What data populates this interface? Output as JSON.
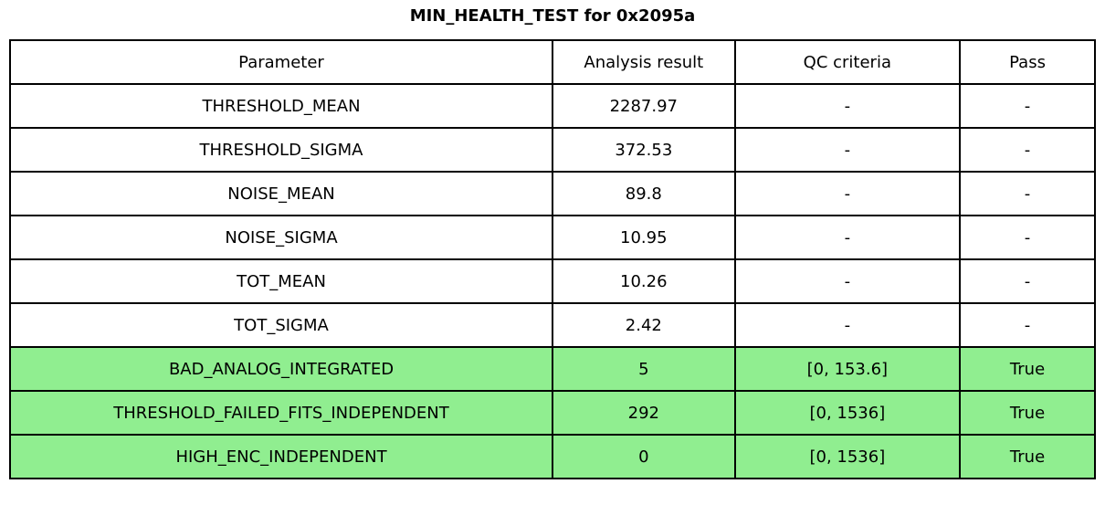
{
  "title": "MIN_HEALTH_TEST for 0x2095a",
  "chart_data": {
    "type": "table",
    "title": "MIN_HEALTH_TEST for 0x2095a",
    "columns": [
      "Parameter",
      "Analysis result",
      "QC criteria",
      "Pass"
    ],
    "rows": [
      {
        "parameter": "THRESHOLD_MEAN",
        "analysis_result": "2287.97",
        "qc_criteria": "-",
        "pass": "-",
        "highlighted": false
      },
      {
        "parameter": "THRESHOLD_SIGMA",
        "analysis_result": "372.53",
        "qc_criteria": "-",
        "pass": "-",
        "highlighted": false
      },
      {
        "parameter": "NOISE_MEAN",
        "analysis_result": "89.8",
        "qc_criteria": "-",
        "pass": "-",
        "highlighted": false
      },
      {
        "parameter": "NOISE_SIGMA",
        "analysis_result": "10.95",
        "qc_criteria": "-",
        "pass": "-",
        "highlighted": false
      },
      {
        "parameter": "TOT_MEAN",
        "analysis_result": "10.26",
        "qc_criteria": "-",
        "pass": "-",
        "highlighted": false
      },
      {
        "parameter": "TOT_SIGMA",
        "analysis_result": "2.42",
        "qc_criteria": "-",
        "pass": "-",
        "highlighted": false
      },
      {
        "parameter": "BAD_ANALOG_INTEGRATED",
        "analysis_result": "5",
        "qc_criteria": "[0, 153.6]",
        "pass": "True",
        "highlighted": true
      },
      {
        "parameter": "THRESHOLD_FAILED_FITS_INDEPENDENT",
        "analysis_result": "292",
        "qc_criteria": "[0, 1536]",
        "pass": "True",
        "highlighted": true
      },
      {
        "parameter": "HIGH_ENC_INDEPENDENT",
        "analysis_result": "0",
        "qc_criteria": "[0, 1536]",
        "pass": "True",
        "highlighted": true
      }
    ],
    "layout": {
      "highlight_color": "#90EE90",
      "border_color": "#000000",
      "background_color": "#ffffff",
      "grid": true,
      "legend": "none"
    }
  }
}
